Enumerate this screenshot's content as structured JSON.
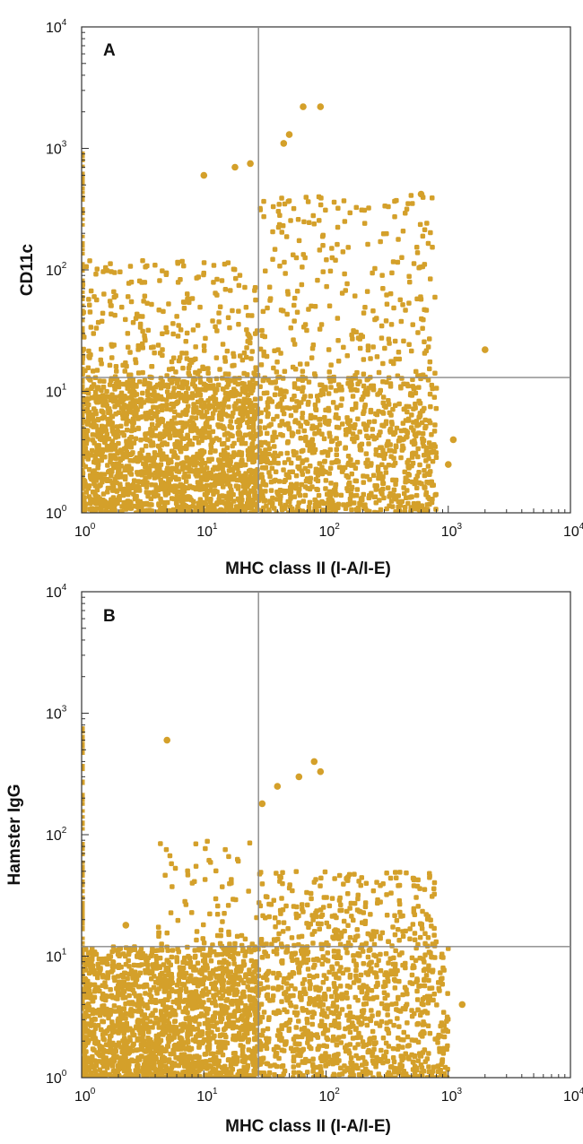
{
  "chart_data": [
    {
      "type": "scatter",
      "panel_label": "A",
      "xlabel": "MHC class II (I-A/I-E)",
      "ylabel": "CD11c",
      "x_scale": "log",
      "y_scale": "log",
      "xlim": [
        1,
        10000
      ],
      "ylim": [
        1,
        10000
      ],
      "x_ticks": [
        {
          "base": "10",
          "exp": "0"
        },
        {
          "base": "10",
          "exp": "1"
        },
        {
          "base": "10",
          "exp": "2"
        },
        {
          "base": "10",
          "exp": "3"
        },
        {
          "base": "10",
          "exp": "4"
        }
      ],
      "y_ticks": [
        {
          "base": "10",
          "exp": "0"
        },
        {
          "base": "10",
          "exp": "1"
        },
        {
          "base": "10",
          "exp": "2"
        },
        {
          "base": "10",
          "exp": "3"
        },
        {
          "base": "10",
          "exp": "4"
        }
      ],
      "quadrant_gate": {
        "x": 28,
        "y": 13
      },
      "point_color": "#d4a02a",
      "dense_regions": [
        {
          "x_range": [
            1,
            28
          ],
          "y_range": [
            1,
            13
          ],
          "density": "very high"
        },
        {
          "x_range": [
            28,
            800
          ],
          "y_range": [
            1,
            13
          ],
          "density": "high"
        },
        {
          "x_range": [
            1,
            28
          ],
          "y_range": [
            13,
            120
          ],
          "density": "medium"
        },
        {
          "x_range": [
            28,
            800
          ],
          "y_range": [
            13,
            420
          ],
          "density": "medium"
        }
      ],
      "outliers": [
        [
          65,
          2200
        ],
        [
          90,
          2200
        ],
        [
          45,
          1100
        ],
        [
          50,
          1300
        ],
        [
          24,
          750
        ],
        [
          10,
          600
        ],
        [
          18,
          700
        ],
        [
          2000,
          22
        ],
        [
          1100,
          4
        ],
        [
          1000,
          2.5
        ],
        [
          600,
          420
        ]
      ],
      "grid": false,
      "legend": "none"
    },
    {
      "type": "scatter",
      "panel_label": "B",
      "xlabel": "MHC class II (I-A/I-E)",
      "ylabel": "Hamster IgG",
      "x_scale": "log",
      "y_scale": "log",
      "xlim": [
        1,
        10000
      ],
      "ylim": [
        1,
        10000
      ],
      "x_ticks": [
        {
          "base": "10",
          "exp": "0"
        },
        {
          "base": "10",
          "exp": "1"
        },
        {
          "base": "10",
          "exp": "2"
        },
        {
          "base": "10",
          "exp": "3"
        },
        {
          "base": "10",
          "exp": "4"
        }
      ],
      "y_ticks": [
        {
          "base": "10",
          "exp": "0"
        },
        {
          "base": "10",
          "exp": "1"
        },
        {
          "base": "10",
          "exp": "2"
        },
        {
          "base": "10",
          "exp": "3"
        },
        {
          "base": "10",
          "exp": "4"
        }
      ],
      "quadrant_gate": {
        "x": 28,
        "y": 12
      },
      "point_color": "#d4a02a",
      "dense_regions": [
        {
          "x_range": [
            1,
            28
          ],
          "y_range": [
            1,
            12
          ],
          "density": "very high"
        },
        {
          "x_range": [
            28,
            1000
          ],
          "y_range": [
            1,
            12
          ],
          "density": "high"
        },
        {
          "x_range": [
            4,
            28
          ],
          "y_range": [
            12,
            100
          ],
          "density": "low"
        },
        {
          "x_range": [
            28,
            800
          ],
          "y_range": [
            12,
            50
          ],
          "density": "medium"
        }
      ],
      "outliers": [
        [
          5,
          600
        ],
        [
          80,
          400
        ],
        [
          90,
          330
        ],
        [
          60,
          300
        ],
        [
          40,
          250
        ],
        [
          30,
          180
        ],
        [
          1300,
          4
        ],
        [
          2.3,
          18
        ]
      ],
      "grid": false,
      "legend": "none"
    }
  ]
}
